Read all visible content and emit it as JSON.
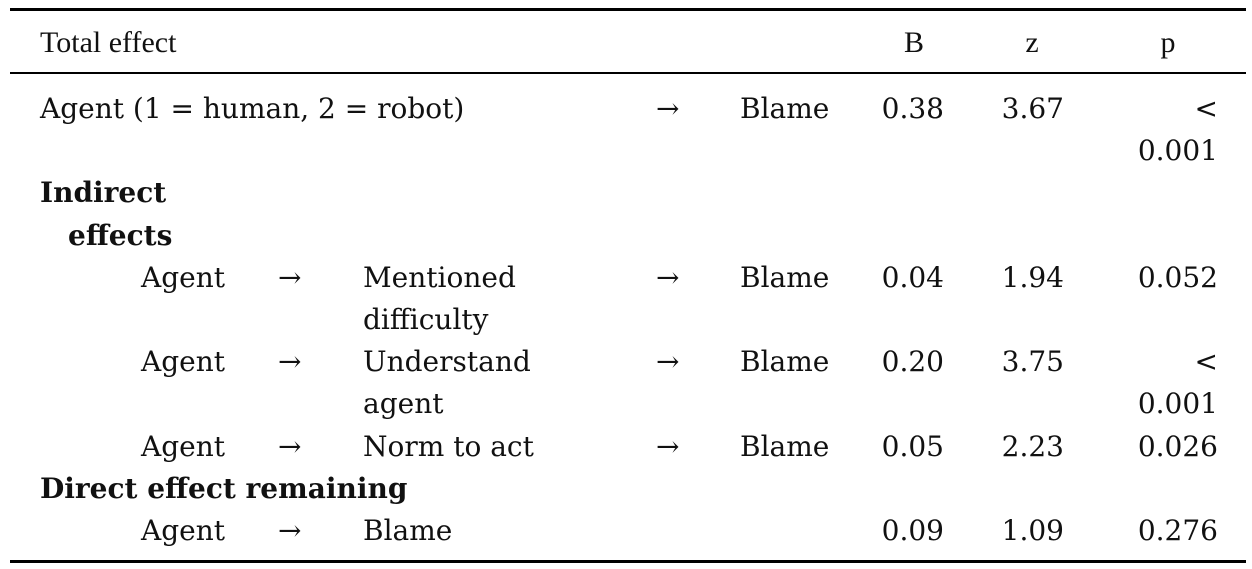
{
  "header": {
    "label": "Total effect",
    "col_b": "B",
    "col_z": "z",
    "col_p": "p"
  },
  "total": {
    "predictor": "Agent (1 = human, 2 = robot)",
    "arrow": "→",
    "outcome": "Blame",
    "b": "0.38",
    "z": "3.67",
    "p_line1": "<",
    "p_line2": "0.001"
  },
  "indirect": {
    "heading_line1": "Indirect",
    "heading_line2": "effects",
    "rows": [
      {
        "from": "Agent",
        "arrow1": "→",
        "mediator_line1": "Mentioned",
        "mediator_line2": "difficulty",
        "arrow2": "→",
        "to": "Blame",
        "b": "0.04",
        "z": "1.94",
        "p": "0.052"
      },
      {
        "from": "Agent",
        "arrow1": "→",
        "mediator_line1": "Understand",
        "mediator_line2": "agent",
        "arrow2": "→",
        "to": "Blame",
        "b": "0.20",
        "z": "3.75",
        "p_line1": "<",
        "p_line2": "0.001"
      },
      {
        "from": "Agent",
        "arrow1": "→",
        "mediator_line1": "Norm to act",
        "arrow2": "→",
        "to": "Blame",
        "b": "0.05",
        "z": "2.23",
        "p": "0.026"
      }
    ]
  },
  "direct": {
    "heading": "Direct effect remaining",
    "from": "Agent",
    "arrow": "→",
    "to": "Blame",
    "b": "0.09",
    "z": "1.09",
    "p": "0.276"
  }
}
